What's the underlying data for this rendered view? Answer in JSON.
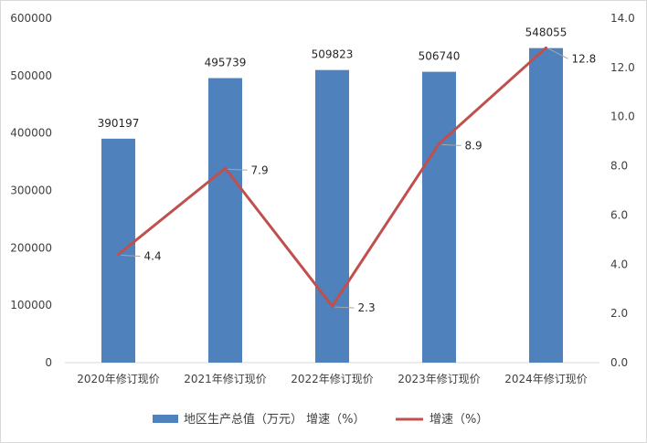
{
  "chart_data": {
    "type": "bar+line",
    "categories": [
      "2020年修订现价",
      "2021年修订现价",
      "2022年修订现价",
      "2023年修订现价",
      "2024年修订现价"
    ],
    "series": [
      {
        "name": "地区生产总值（万元）",
        "type": "bar",
        "axis": "left",
        "values": [
          390197,
          495739,
          509823,
          506740,
          548055
        ],
        "color": "#4f81bd"
      },
      {
        "name": "增速（%）",
        "type": "line",
        "axis": "right",
        "values": [
          4.4,
          7.9,
          2.3,
          8.9,
          12.8
        ],
        "color": "#c0504d"
      }
    ],
    "y_left": {
      "min": 0,
      "max": 600000,
      "step": 100000,
      "ticks": [
        "0",
        "100000",
        "200000",
        "300000",
        "400000",
        "500000",
        "600000"
      ]
    },
    "y_right": {
      "min": 0,
      "max": 14,
      "step": 2,
      "ticks": [
        "0.0",
        "2.0",
        "4.0",
        "6.0",
        "8.0",
        "10.0",
        "12.0",
        "14.0"
      ]
    },
    "bar_labels": [
      "390197",
      "495739",
      "509823",
      "506740",
      "548055"
    ],
    "line_labels": [
      "4.4",
      "7.9",
      "2.3",
      "8.9",
      "12.8"
    ],
    "legend": {
      "position": "bottom",
      "items": [
        "地区生产总值（万元） 增速（%）",
        "增速（%）"
      ]
    },
    "grid": false
  }
}
